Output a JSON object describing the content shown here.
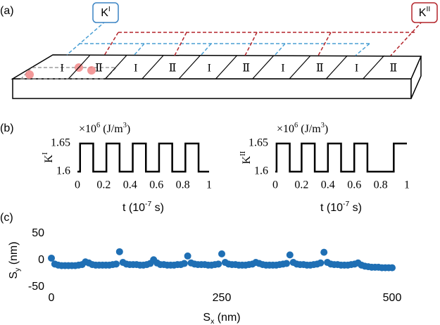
{
  "panel_labels": [
    "(a)",
    "(b)",
    "(c)"
  ],
  "diagram": {
    "boxes": [
      {
        "label": [
          {
            "text": "K"
          },
          {
            "text": "I",
            "sup": true
          }
        ],
        "color": "#3a84c4"
      },
      {
        "label": [
          {
            "text": "K"
          },
          {
            "text": "II",
            "sup": true
          }
        ],
        "color": "#b3242a"
      }
    ],
    "segments": [
      "I",
      "Ⅱ",
      "I",
      "Ⅱ",
      "I",
      "Ⅱ",
      "I",
      "Ⅱ",
      "I",
      "Ⅱ"
    ]
  },
  "chart_data": [
    {
      "type": "line",
      "color": "#000000",
      "ylabel": [
        {
          "text": "K"
        },
        {
          "text": "I",
          "sup": true
        }
      ],
      "xlabel": [
        {
          "text": "t "
        },
        {
          "text": "(10"
        },
        {
          "text": "-7",
          "sup": true
        },
        {
          "text": " s)"
        }
      ],
      "annotation": [
        {
          "text": "×10"
        },
        {
          "text": "6",
          "sup": true
        },
        {
          "text": " (J/m"
        },
        {
          "text": "3",
          "sup": true
        },
        {
          "text": ")"
        }
      ],
      "x": [
        0,
        0.02,
        0.02,
        0.12,
        0.12,
        0.22,
        0.22,
        0.32,
        0.32,
        0.42,
        0.42,
        0.52,
        0.52,
        0.62,
        0.62,
        0.72,
        0.72,
        0.82,
        0.82,
        0.92,
        0.92,
        1
      ],
      "values": [
        1.6,
        1.6,
        1.65,
        1.65,
        1.6,
        1.6,
        1.65,
        1.65,
        1.6,
        1.6,
        1.65,
        1.65,
        1.6,
        1.6,
        1.65,
        1.65,
        1.6,
        1.6,
        1.65,
        1.65,
        1.6,
        1.6
      ],
      "xlim": [
        0,
        1
      ],
      "ylim": [
        1.59,
        1.66
      ],
      "xticks": [
        0,
        0.2,
        0.4,
        0.6,
        0.8,
        1
      ],
      "yticks": [
        1.6,
        1.65
      ]
    },
    {
      "type": "line",
      "color": "#000000",
      "ylabel": [
        {
          "text": "K"
        },
        {
          "text": "II",
          "sup": true
        }
      ],
      "xlabel": [
        {
          "text": "t "
        },
        {
          "text": "(10"
        },
        {
          "text": "-7",
          "sup": true
        },
        {
          "text": " s)"
        }
      ],
      "annotation": [
        {
          "text": "×10"
        },
        {
          "text": "6",
          "sup": true
        },
        {
          "text": " (J/m"
        },
        {
          "text": "3",
          "sup": true
        },
        {
          "text": ")"
        }
      ],
      "x": [
        0,
        0.01,
        0.01,
        0.11,
        0.11,
        0.2,
        0.2,
        0.3,
        0.3,
        0.4,
        0.4,
        0.5,
        0.5,
        0.6,
        0.6,
        0.7,
        0.7,
        0.9,
        0.9,
        1
      ],
      "values": [
        1.6,
        1.6,
        1.65,
        1.65,
        1.6,
        1.6,
        1.65,
        1.65,
        1.6,
        1.6,
        1.65,
        1.65,
        1.6,
        1.6,
        1.65,
        1.65,
        1.6,
        1.6,
        1.65,
        1.65
      ],
      "xlim": [
        0,
        1
      ],
      "ylim": [
        1.59,
        1.66
      ],
      "xticks": [
        0,
        0.2,
        0.4,
        0.6,
        0.8,
        1
      ],
      "yticks": [
        1.6,
        1.65
      ]
    },
    {
      "type": "scatter",
      "color": "#1f6fb4",
      "ylabel": [
        {
          "text": "S"
        },
        {
          "text": "y",
          "sub": true
        },
        {
          "text": " (nm)"
        }
      ],
      "xlabel": [
        {
          "text": "S"
        },
        {
          "text": "x",
          "sub": true
        },
        {
          "text": " (nm)"
        }
      ],
      "x": [
        0,
        5,
        10,
        15,
        20,
        25,
        30,
        35,
        40,
        45,
        50,
        55,
        60,
        65,
        70,
        75,
        80,
        85,
        90,
        95,
        100,
        105,
        110,
        115,
        120,
        125,
        130,
        135,
        140,
        145,
        150,
        155,
        160,
        165,
        170,
        175,
        180,
        185,
        190,
        195,
        200,
        205,
        210,
        215,
        220,
        225,
        230,
        235,
        240,
        245,
        250,
        255,
        260,
        265,
        270,
        275,
        280,
        285,
        290,
        295,
        300,
        305,
        310,
        315,
        320,
        325,
        330,
        335,
        340,
        345,
        350,
        355,
        360,
        365,
        370,
        375,
        380,
        385,
        390,
        395,
        400,
        405,
        410,
        415,
        420,
        425,
        430,
        435,
        440,
        445,
        450,
        455,
        460,
        465,
        470,
        475,
        480,
        485,
        490,
        495,
        500
      ],
      "values": [
        4,
        -7,
        -9,
        -10,
        -10,
        -10,
        -10,
        -10,
        -9,
        -8,
        -3,
        -5,
        -8,
        -9,
        -9,
        -9,
        -9,
        -9,
        -8,
        -7,
        16,
        -4,
        -7,
        -8,
        -8,
        -8,
        -9,
        -9,
        -8,
        -6,
        1,
        -5,
        -8,
        -8,
        -9,
        -9,
        -9,
        -8,
        -8,
        -6,
        8,
        -5,
        -7,
        -8,
        -8,
        -8,
        -9,
        -9,
        -8,
        -7,
        12,
        -4,
        -7,
        -8,
        -8,
        -9,
        -9,
        -9,
        -8,
        -7,
        -4,
        -6,
        -8,
        -9,
        -9,
        -9,
        -9,
        -8,
        -7,
        -6,
        10,
        -4,
        -7,
        -8,
        -8,
        -9,
        -9,
        -8,
        -7,
        -5,
        15,
        -4,
        -7,
        -8,
        -8,
        -9,
        -9,
        -9,
        -8,
        -7,
        -5,
        -9,
        -11,
        -12,
        -13,
        -13,
        -13,
        -14,
        -14,
        -14,
        -14
      ],
      "xlim": [
        0,
        500
      ],
      "ylim": [
        -50,
        50
      ],
      "xticks": [
        0,
        250,
        500
      ],
      "yticks": [
        -50,
        0,
        50
      ]
    }
  ]
}
